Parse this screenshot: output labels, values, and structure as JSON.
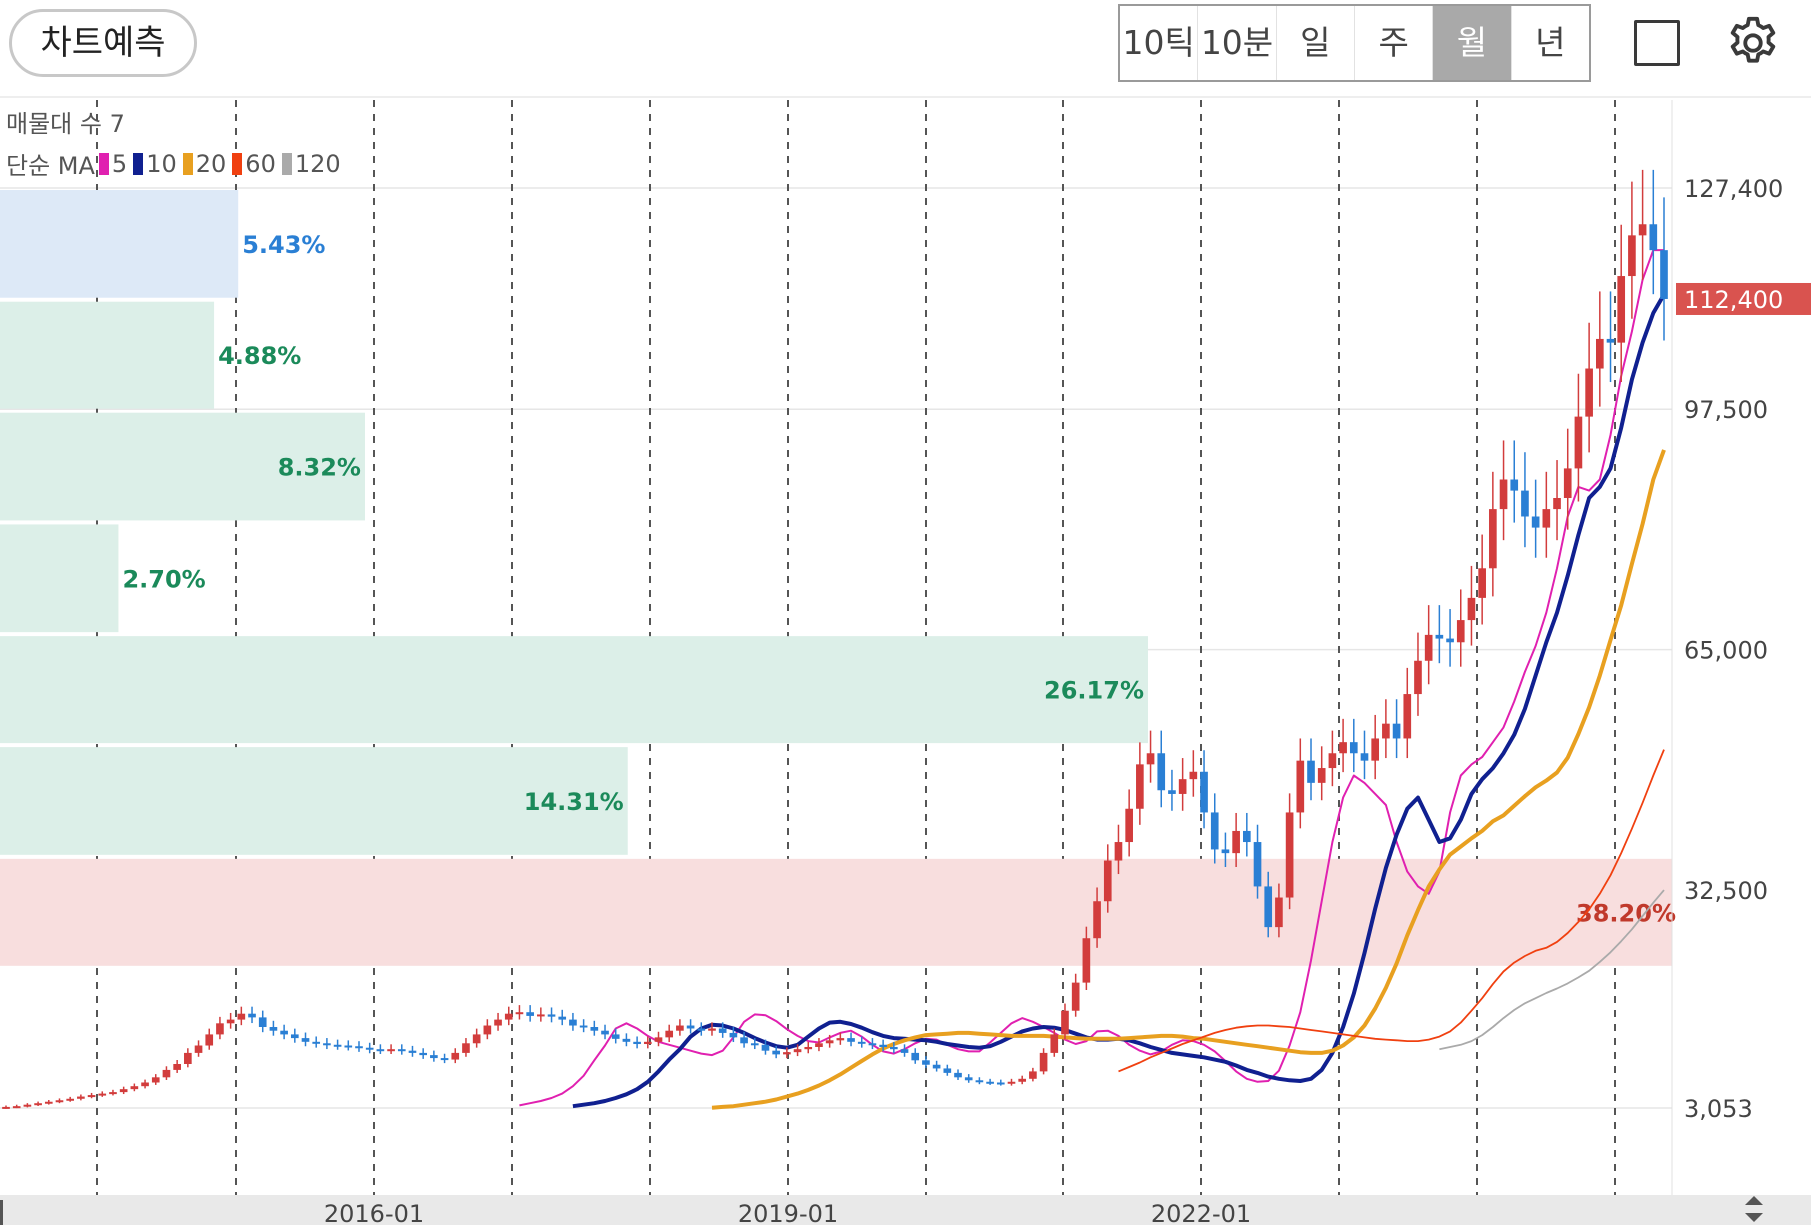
{
  "toolbar": {
    "predict_label": "차트예측",
    "periods": [
      "10틱",
      "10분",
      "일",
      "주",
      "월",
      "년"
    ],
    "active_period": "월"
  },
  "icons": {
    "fullscreen": "square-icon",
    "settings": "gear-icon"
  },
  "legend": {
    "volume_profile": "매물대 수 7",
    "ma_label": "단순 MA",
    "ma": [
      {
        "period": "5",
        "color": "#e020b0"
      },
      {
        "period": "10",
        "color": "#102090"
      },
      {
        "period": "20",
        "color": "#e8a020"
      },
      {
        "period": "60",
        "color": "#f04010"
      },
      {
        "period": "120",
        "color": "#aaaaaa"
      }
    ]
  },
  "colors": {
    "up": "#d23c3c",
    "down": "#2a7fd4",
    "price_tag": "#d9534f"
  },
  "chart_data": {
    "type": "candlestick",
    "timeframe": "monthly",
    "y_ticks": [
      3053,
      32500,
      65000,
      97500,
      127400
    ],
    "y_tick_labels": [
      "3,053",
      "32,500",
      "65,000",
      "97,500",
      "127,400"
    ],
    "x_tick_labels": [
      "2016-01",
      "2019-01",
      "2022-01"
    ],
    "current_price": 112400,
    "current_price_label": "112,400",
    "volume_profile": [
      {
        "low": 112300,
        "high": 127400,
        "percent": "5.43%",
        "color": "#dde9f7",
        "text_color": "#2a7fd4"
      },
      {
        "low": 97300,
        "high": 112300,
        "percent": "4.88%",
        "color": "#dcefe8",
        "text_color": "#1b8a5a"
      },
      {
        "low": 82200,
        "high": 97300,
        "percent": "8.32%",
        "color": "#dcefe8",
        "text_color": "#1b8a5a"
      },
      {
        "low": 67100,
        "high": 82200,
        "percent": "2.70%",
        "color": "#dcefe8",
        "text_color": "#1b8a5a"
      },
      {
        "low": 52100,
        "high": 67100,
        "percent": "26.17%",
        "color": "#dcefe8",
        "text_color": "#1b8a5a"
      },
      {
        "low": 37000,
        "high": 52100,
        "percent": "14.31%",
        "color": "#dcefe8",
        "text_color": "#1b8a5a"
      },
      {
        "low": 22000,
        "high": 37000,
        "percent": "38.20%",
        "color": "#f8dede",
        "text_color": "#c0392b"
      }
    ],
    "closes": [
      3200,
      3300,
      3500,
      3700,
      3900,
      4100,
      4300,
      4600,
      4800,
      5000,
      5200,
      5600,
      6000,
      6500,
      7200,
      8200,
      9000,
      10500,
      11500,
      13000,
      14500,
      15000,
      15800,
      15300,
      14000,
      13500,
      13000,
      12500,
      12000,
      11800,
      11600,
      11500,
      11400,
      11200,
      11000,
      10900,
      11000,
      10800,
      10500,
      10200,
      9800,
      9600,
      10500,
      11800,
      13000,
      14200,
      15000,
      15800,
      16000,
      15500,
      15700,
      15400,
      15000,
      14200,
      14000,
      13500,
      13000,
      12400,
      12000,
      11700,
      12000,
      12600,
      13500,
      14200,
      13800,
      13500,
      13800,
      13200,
      12600,
      11800,
      11600,
      10800,
      10300,
      10600,
      11000,
      11300,
      11800,
      12200,
      12500,
      12000,
      11800,
      11600,
      11300,
      11000,
      10500,
      9500,
      8900,
      8400,
      7800,
      7200,
      6800,
      6600,
      6500,
      6400,
      6600,
      7000,
      8000,
      10500,
      13000,
      16200,
      20000,
      26000,
      31000,
      36500,
      39000,
      43500,
      49500,
      51000,
      46000,
      45500,
      47500,
      48500,
      43000,
      38000,
      37500,
      40500,
      39000,
      33000,
      27500,
      31500,
      43000,
      50000,
      47000,
      49000,
      51000,
      52500,
      51000,
      50000,
      53000,
      55000,
      53000,
      59000,
      63500,
      67000,
      66500,
      66000,
      69000,
      72000,
      76000,
      84000,
      88000,
      86500,
      83000,
      81500,
      84000,
      85500,
      89500,
      96500,
      103000,
      107000,
      106500,
      115500,
      121000,
      122500,
      119000,
      112400
    ],
    "ma_series": [
      {
        "name": "5",
        "values": [
          3400,
          3700,
          4000,
          4400,
          5000,
          6000,
          7400,
          9500,
          11500,
          13800,
          14500,
          13800,
          12800,
          12000,
          11600,
          11200,
          10800,
          10400,
          10200,
          10800,
          12600,
          14700,
          15700,
          15600,
          14800,
          13700,
          12800,
          12100,
          11900,
          12600,
          13200,
          13500,
          12700,
          11600,
          10700,
          10400,
          11000,
          11800,
          12400,
          12300,
          11600,
          11000,
          10700,
          10700,
          11900,
          13200,
          14500,
          15200,
          14700,
          14000,
          13200,
          12300,
          11700,
          12100,
          13400,
          13500,
          12800,
          11600,
          10800,
          10300,
          10700,
          11600,
          12200,
          12100,
          11600,
          10700,
          9400,
          8000,
          7000,
          6600,
          6700,
          8100,
          11500,
          16000,
          23000,
          31000,
          39000,
          45000,
          48000,
          47000,
          45500,
          44000,
          39000,
          35000,
          33000,
          32000,
          35000,
          43000,
          48000,
          49500,
          50500,
          52500,
          54500,
          58000,
          62000,
          65500,
          70000,
          76000,
          83000,
          87000,
          86500,
          88000,
          94000,
          102000,
          108000,
          115000,
          119000,
          119000
        ]
      },
      {
        "name": "10",
        "values": [
          3300,
          3500,
          3700,
          4000,
          4400,
          4900,
          5600,
          6600,
          8000,
          9600,
          11000,
          12700,
          13800,
          14300,
          14200,
          13800,
          13200,
          12500,
          11900,
          11400,
          11200,
          11600,
          12700,
          13800,
          14600,
          14700,
          14400,
          13900,
          13300,
          12800,
          12500,
          12400,
          12300,
          12200,
          12000,
          11700,
          11500,
          11300,
          11200,
          11400,
          12000,
          12700,
          13400,
          13800,
          14000,
          13900,
          13600,
          13100,
          12600,
          12300,
          12300,
          12400,
          12200,
          11800,
          11300,
          10900,
          10500,
          10300,
          10100,
          9900,
          9600,
          9300,
          8800,
          8200,
          7800,
          7300,
          7000,
          6800,
          6700,
          7000,
          8200,
          10500,
          14000,
          18500,
          24000,
          30000,
          35500,
          40000,
          43500,
          45000,
          42000,
          39000,
          39500,
          42000,
          45500,
          47500,
          49000,
          51000,
          53500,
          57000,
          61500,
          66000,
          70000,
          75000,
          80500,
          85500,
          87000,
          89500,
          95000,
          101500,
          106500,
          110500,
          113000
        ]
      },
      {
        "name": "20",
        "values": [
          3100,
          3200,
          3300,
          3500,
          3700,
          3900,
          4200,
          4600,
          5000,
          5500,
          6100,
          6800,
          7600,
          8500,
          9400,
          10300,
          11100,
          11700,
          12200,
          12600,
          12900,
          13000,
          13100,
          13200,
          13200,
          13100,
          13000,
          12900,
          12800,
          12800,
          12800,
          12800,
          12700,
          12600,
          12500,
          12400,
          12400,
          12400,
          12400,
          12500,
          12600,
          12700,
          12800,
          12800,
          12700,
          12500,
          12400,
          12200,
          12000,
          11800,
          11600,
          11400,
          11200,
          11000,
          10800,
          10600,
          10500,
          10500,
          10800,
          11500,
          12600,
          14200,
          16500,
          19300,
          22600,
          26400,
          29800,
          33000,
          35300,
          37300,
          38400,
          39500,
          40500,
          41800,
          42600,
          43900,
          45200,
          46400,
          47300,
          48400,
          50400,
          53600,
          57200,
          61500,
          66300,
          71000,
          76600,
          82000,
          88000,
          92000
        ]
      },
      {
        "name": "60",
        "values": [
          8000,
          8600,
          9200,
          9900,
          10500,
          11100,
          11700,
          12200,
          12700,
          13200,
          13600,
          13900,
          14100,
          14200,
          14200,
          14100,
          14000,
          13800,
          13600,
          13400,
          13200,
          13000,
          12800,
          12600,
          12400,
          12300,
          12200,
          12100,
          12100,
          12300,
          12700,
          13400,
          14600,
          16200,
          17900,
          19800,
          21500,
          22700,
          23600,
          24300,
          24700,
          25500,
          26700,
          28200,
          29900,
          32000,
          34500,
          37500,
          40800,
          44300,
          48000,
          51500
        ]
      },
      {
        "name": "120",
        "values": [
          11000,
          11300,
          11600,
          12100,
          12900,
          14000,
          15200,
          16300,
          17200,
          17900,
          18600,
          19200,
          19900,
          20700,
          21600,
          22800,
          24100,
          25600,
          27200,
          29000,
          30800,
          32500
        ]
      }
    ]
  },
  "volume_labels_note": ""
}
